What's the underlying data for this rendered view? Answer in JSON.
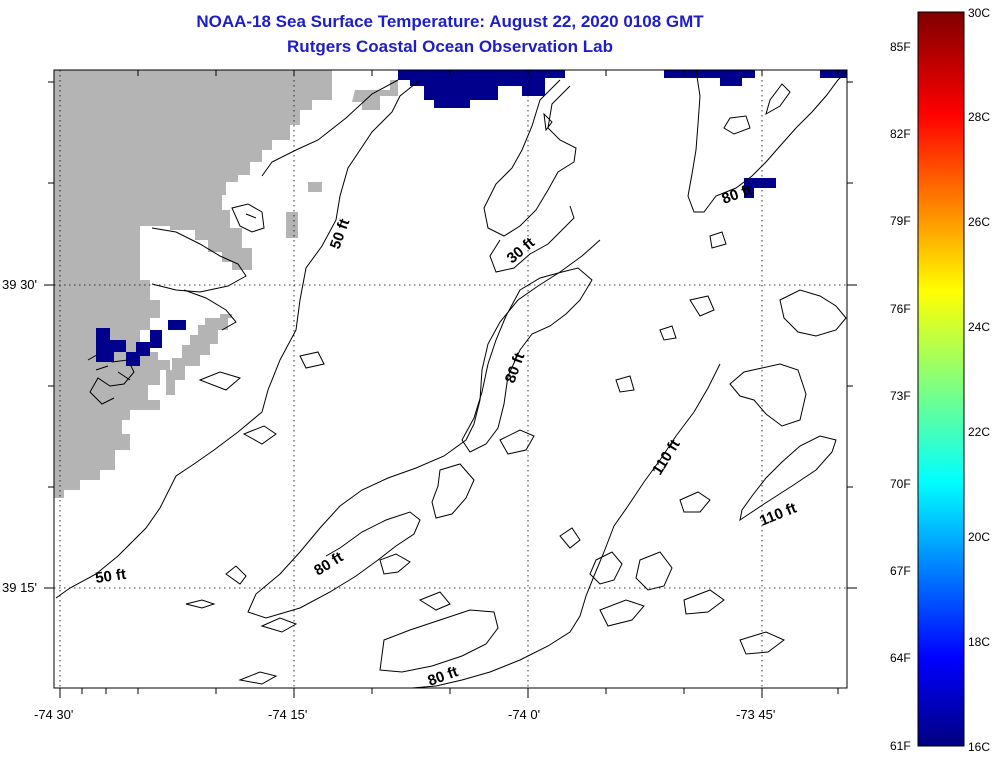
{
  "title": "NOAA-18 Sea Surface Temperature:  August 22, 2020 0108 GMT",
  "subtitle": "Rutgers Coastal Ocean Observation Lab",
  "map": {
    "land_color": "#b4b4b4",
    "cold_pixel_color": "#00008c",
    "contour_color": "#000000",
    "longitude_labels": [
      "-74 30'",
      "-74 15'",
      "-74 0'",
      "-73 45'"
    ],
    "latitude_labels": [
      "39 30'",
      "39 15'"
    ],
    "depth_contour_labels": [
      "50 ft",
      "50 ft",
      "30 ft",
      "80 ft",
      "80 ft",
      "80 ft",
      "80 ft",
      "110 ft",
      "110 ft"
    ]
  },
  "colorbar": {
    "scale_min_c": 16,
    "scale_max_c": 30,
    "celsius_labels": [
      "30C",
      "28C",
      "26C",
      "24C",
      "22C",
      "20C",
      "18C",
      "16C"
    ],
    "fahrenheit_labels": [
      "85F",
      "82F",
      "79F",
      "76F",
      "73F",
      "70F",
      "67F",
      "64F",
      "61F"
    ]
  }
}
